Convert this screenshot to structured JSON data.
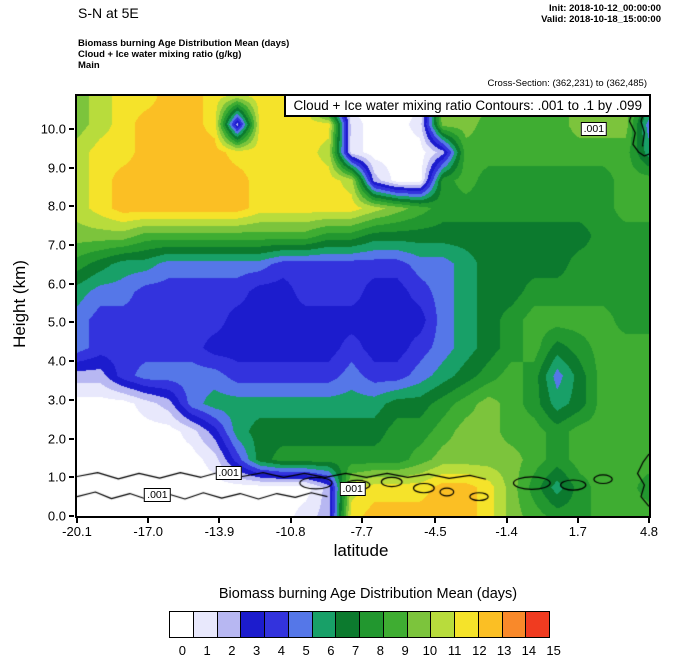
{
  "header": {
    "title": "S-N at 5E",
    "init": "Init: 2018-10-12_00:00:00",
    "valid": "Valid: 2018-10-18_15:00:00",
    "subtitle_lines": [
      "Biomass burning Age Distribution Mean   (days)",
      "Cloud + Ice water mixing ratio   (g/kg)",
      "Main"
    ],
    "cross_section": "Cross-Section: (362,231) to (362,485)"
  },
  "plot": {
    "contour_banner": "Cloud + Ice water mixing ratio Contours: .001 to .1 by .099",
    "xlabel": "latitude",
    "ylabel": "Height (km)",
    "xticks": [
      "-20.1",
      "-17.0",
      "-13.9",
      "-10.8",
      "-7.7",
      "-4.5",
      "-1.4",
      "1.7",
      "4.8"
    ],
    "yticks": [
      "0.0",
      "1.0",
      "2.0",
      "3.0",
      "4.0",
      "5.0",
      "6.0",
      "7.0",
      "8.0",
      "9.0",
      "10.0"
    ]
  },
  "colorbar": {
    "title": "Biomass burning Age Distribution Mean  (days)",
    "labels": [
      "0",
      "1",
      "2",
      "3",
      "4",
      "5",
      "6",
      "7",
      "8",
      "9",
      "10",
      "11",
      "12",
      "13",
      "14",
      "15"
    ]
  },
  "chart_data": {
    "type": "heatmap",
    "title": "Biomass burning Age Distribution Mean (days)",
    "subtitle": "Cloud + Ice water mixing ratio (g/kg) contours, cross-section S-N at 5E",
    "xlabel": "latitude",
    "ylabel": "Height (km)",
    "x_range": [
      -20.1,
      4.8
    ],
    "y_range": [
      0,
      10.85
    ],
    "xticks": [
      -20.1,
      -17.0,
      -13.9,
      -10.8,
      -7.7,
      -4.5,
      -1.4,
      1.7,
      4.8
    ],
    "yticks": [
      0,
      1,
      2,
      3,
      4,
      5,
      6,
      7,
      8,
      9,
      10
    ],
    "fill_units": "days",
    "levels": [
      0,
      1,
      2,
      3,
      4,
      5,
      6,
      7,
      8,
      9,
      10,
      11,
      12,
      13,
      14,
      15
    ],
    "palette": [
      "#ffffff",
      "#e8e8fc",
      "#b7b7f2",
      "#1c1ccd",
      "#3333dd",
      "#5577e8",
      "#18a068",
      "#0c7a2e",
      "#22972f",
      "#3fad32",
      "#7cc43c",
      "#b8dc3c",
      "#f5e32a",
      "#fbbf24",
      "#f9892a",
      "#f03b20"
    ],
    "grid": {
      "note": "age (days), rows bottom-to-top on uniform lat/height grid",
      "x_min": -20.1,
      "x_max": 4.8,
      "y_min": 0,
      "y_max": 10.85,
      "values": [
        [
          0,
          0,
          0,
          0,
          0,
          0,
          0,
          0,
          0,
          0,
          1,
          2,
          12,
          13,
          13,
          13,
          13,
          13,
          12,
          10,
          9,
          8,
          8,
          9,
          9,
          9
        ],
        [
          0,
          0,
          0,
          0,
          0,
          0,
          0,
          0,
          0,
          0,
          0,
          2,
          11,
          12,
          12,
          12,
          13,
          13,
          12,
          10,
          8,
          6,
          8,
          9,
          9,
          8
        ],
        [
          0,
          0,
          0,
          0,
          0,
          0,
          1,
          4,
          7,
          8,
          8,
          8,
          8,
          8,
          8,
          9,
          10,
          10,
          10,
          10,
          9,
          8,
          9,
          9,
          9,
          9
        ],
        [
          0,
          0,
          0,
          0,
          0,
          1,
          3,
          6,
          7,
          7,
          7,
          7,
          7,
          7,
          8,
          8,
          9,
          10,
          10,
          9,
          9,
          8,
          9,
          9,
          9,
          9
        ],
        [
          0,
          0,
          0,
          1,
          2,
          5,
          6,
          6,
          6,
          6,
          6,
          6,
          6,
          6,
          7,
          7,
          8,
          9,
          10,
          9,
          8,
          6,
          7,
          9,
          9,
          9
        ],
        [
          2,
          2,
          4,
          5,
          5,
          5,
          5,
          4,
          4,
          4,
          4,
          4,
          5,
          4,
          4,
          5,
          6,
          7,
          8,
          9,
          8,
          5,
          7,
          9,
          9,
          9
        ],
        [
          5,
          4,
          4,
          4,
          4,
          4,
          3,
          3,
          3,
          3,
          3,
          3,
          4,
          3,
          3,
          4,
          5,
          6,
          7,
          8,
          9,
          7,
          8,
          9,
          9,
          9
        ],
        [
          5,
          4,
          4,
          4,
          4,
          4,
          4,
          3,
          3,
          3,
          3,
          3,
          3,
          3,
          3,
          3,
          5,
          6,
          7,
          8,
          9,
          9,
          9,
          9,
          8,
          8
        ],
        [
          6,
          5,
          5,
          4,
          4,
          4,
          4,
          4,
          3,
          3,
          4,
          4,
          4,
          3,
          3,
          4,
          5,
          6,
          7,
          7,
          8,
          8,
          8,
          8,
          8,
          8
        ],
        [
          8,
          7,
          6,
          6,
          5,
          5,
          5,
          5,
          5,
          4,
          4,
          4,
          4,
          4,
          4,
          5,
          5,
          6,
          7,
          7,
          7,
          7,
          8,
          8,
          8,
          8
        ],
        [
          10,
          10,
          10,
          9,
          9,
          9,
          9,
          9,
          9,
          9,
          9,
          8,
          8,
          7,
          7,
          7,
          7,
          7,
          7,
          7,
          7,
          7,
          7,
          8,
          8,
          8
        ],
        [
          11,
          12,
          13,
          13,
          13,
          13,
          13,
          13,
          12,
          12,
          12,
          12,
          12,
          11,
          10,
          9,
          8,
          8,
          8,
          8,
          8,
          8,
          8,
          8,
          9,
          9
        ],
        [
          11,
          12,
          13,
          13,
          13,
          13,
          13,
          13,
          12,
          12,
          12,
          12,
          11,
          2,
          0,
          0,
          8,
          9,
          8,
          8,
          8,
          8,
          8,
          8,
          9,
          9
        ],
        [
          11,
          12,
          12,
          13,
          13,
          13,
          13,
          12,
          12,
          12,
          12,
          11,
          1,
          0,
          0,
          0,
          2,
          9,
          9,
          9,
          9,
          9,
          9,
          9,
          9,
          6
        ],
        [
          10,
          11,
          12,
          13,
          13,
          13,
          12,
          2,
          12,
          12,
          12,
          12,
          1,
          0,
          0,
          1,
          10,
          10,
          9,
          9,
          9,
          9,
          10,
          10,
          10,
          5
        ],
        [
          10,
          11,
          12,
          12,
          13,
          13,
          12,
          11,
          12,
          12,
          12,
          2,
          0,
          0,
          0,
          0,
          11,
          10,
          10,
          9,
          9,
          9,
          10,
          10,
          10,
          8
        ]
      ]
    },
    "cloud_contours": {
      "units": "g/kg",
      "levels": [
        0.001,
        0.1
      ],
      "banner": "Cloud + Ice water mixing ratio Contours: .001 to .1 by .099",
      "polylines": [
        [
          [
            -20.1,
            0.5
          ],
          [
            -19.3,
            0.62
          ],
          [
            -18.6,
            0.45
          ],
          [
            -17.8,
            0.58
          ],
          [
            -17.0,
            0.42
          ],
          [
            -16.2,
            0.58
          ],
          [
            -15.4,
            0.44
          ],
          [
            -14.6,
            0.6
          ],
          [
            -13.8,
            0.46
          ],
          [
            -13.0,
            0.58
          ],
          [
            -12.2,
            0.44
          ],
          [
            -11.4,
            0.58
          ],
          [
            -10.6,
            0.48
          ],
          [
            -9.9,
            0.6
          ],
          [
            -9.2,
            0.5
          ]
        ],
        [
          [
            -20.1,
            1.02
          ],
          [
            -19.2,
            1.12
          ],
          [
            -18.3,
            0.96
          ],
          [
            -17.4,
            1.1
          ],
          [
            -16.5,
            0.98
          ],
          [
            -15.6,
            1.12
          ],
          [
            -14.7,
            1.0
          ],
          [
            -13.8,
            1.15
          ],
          [
            -12.9,
            1.02
          ],
          [
            -12.0,
            1.12
          ],
          [
            -11.1,
            1.0
          ],
          [
            -10.2,
            1.1
          ],
          [
            -9.3,
            1.0
          ],
          [
            -8.4,
            1.1
          ],
          [
            -7.5,
            1.0
          ],
          [
            -6.6,
            1.1
          ],
          [
            -5.7,
            1.0
          ],
          [
            -4.8,
            1.08
          ],
          [
            -3.9,
            0.97
          ],
          [
            -3.0,
            1.05
          ],
          [
            -2.3,
            0.95
          ]
        ],
        [
          [
            4.8,
            0.25
          ],
          [
            4.45,
            0.5
          ],
          [
            4.6,
            0.8
          ],
          [
            4.3,
            1.1
          ],
          [
            4.55,
            1.4
          ],
          [
            4.8,
            1.6
          ]
        ],
        [
          [
            3.9,
            10.85
          ],
          [
            4.1,
            10.5
          ],
          [
            3.95,
            10.2
          ],
          [
            4.2,
            9.9
          ],
          [
            4.1,
            9.6
          ],
          [
            4.35,
            9.4
          ],
          [
            4.6,
            9.3
          ],
          [
            4.8,
            9.35
          ]
        ],
        [
          [
            4.5,
            10.85
          ],
          [
            4.62,
            10.5
          ],
          [
            4.45,
            10.2
          ],
          [
            4.6,
            9.9
          ],
          [
            4.52,
            9.55
          ]
        ]
      ],
      "ellipses": [
        [
          -9.7,
          0.85,
          0.7,
          0.15
        ],
        [
          -7.9,
          0.8,
          0.55,
          0.12
        ],
        [
          -6.4,
          0.88,
          0.45,
          0.12
        ],
        [
          -5.0,
          0.72,
          0.45,
          0.12
        ],
        [
          -4.0,
          0.62,
          0.3,
          0.1
        ],
        [
          -2.6,
          0.5,
          0.4,
          0.1
        ],
        [
          -0.3,
          0.85,
          0.8,
          0.16
        ],
        [
          1.5,
          0.8,
          0.55,
          0.13
        ],
        [
          2.8,
          0.95,
          0.4,
          0.11
        ]
      ],
      "labels": [
        {
          "text": ".001",
          "lat": -16.6,
          "km": 0.55
        },
        {
          "text": ".001",
          "lat": -13.5,
          "km": 1.1
        },
        {
          "text": ".001",
          "lat": -8.1,
          "km": 0.7
        },
        {
          "text": ".001",
          "lat": 2.4,
          "km": 10.0
        }
      ]
    },
    "colorbar": {
      "title": "Biomass burning Age Distribution Mean  (days)",
      "tick_labels": [
        0,
        1,
        2,
        3,
        4,
        5,
        6,
        7,
        8,
        9,
        10,
        11,
        12,
        13,
        14,
        15
      ],
      "position": "bottom"
    },
    "legend_position": "bottom",
    "grid_lines": false
  }
}
